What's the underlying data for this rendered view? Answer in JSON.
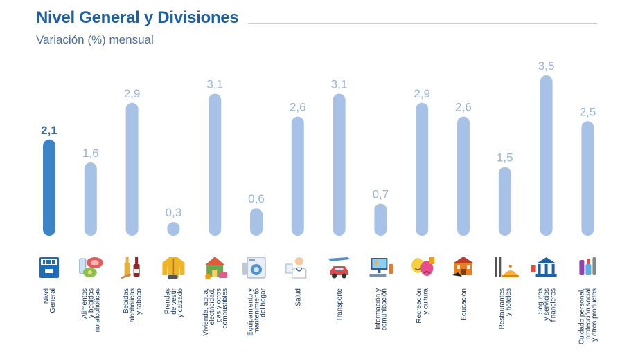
{
  "title": "Nivel General y Divisiones",
  "subtitle": "Variación (%) mensual",
  "colors": {
    "highlight": "#3c84c6",
    "bar": "#a8c1e6",
    "label_highlight": "#2e6cad",
    "label": "#9ab3d6"
  },
  "chart_data": {
    "type": "bar",
    "title": "Nivel General y Divisiones",
    "subtitle": "Variación (%) mensual",
    "xlabel": "",
    "ylabel": "",
    "ylim": [
      0,
      3.5
    ],
    "grid": false,
    "legend": "none",
    "categories": [
      [
        "Nivel",
        "General"
      ],
      [
        "Alimentos",
        "y bebidas",
        "no alcohólicas"
      ],
      [
        "Bebidas",
        "alcohólicas",
        "y tabaco"
      ],
      [
        "Prendas",
        "de vestir",
        "y calzado"
      ],
      [
        "Vivienda, agua,",
        "electricidad,",
        "gas y otros",
        "combustibles"
      ],
      [
        "Equipamiento y",
        "mantenimiento",
        "del hogar"
      ],
      [
        "Salud"
      ],
      [
        "Transporte"
      ],
      [
        "Información y",
        "comunicación"
      ],
      [
        "Recreación",
        "y cultura"
      ],
      [
        "Educación"
      ],
      [
        "Restaurantes",
        "y hoteles"
      ],
      [
        "Seguros",
        "y servicios",
        "financieros"
      ],
      [
        "Cuidado personal,",
        "protección social",
        "y otros productos"
      ]
    ],
    "values": [
      2.1,
      1.6,
      2.9,
      0.3,
      3.1,
      0.6,
      2.6,
      3.1,
      0.7,
      2.9,
      2.6,
      1.5,
      3.5,
      2.5
    ],
    "value_labels": [
      "2,1",
      "1,6",
      "2,9",
      "0,3",
      "3,1",
      "0,6",
      "2,6",
      "3,1",
      "0,7",
      "2,9",
      "2,6",
      "1,5",
      "3,5",
      "2,5"
    ],
    "highlight_index": 0,
    "icons": [
      "ipc-ba-logo-icon",
      "food-icon",
      "bottles-icon",
      "jacket-icon",
      "house-icon",
      "washing-machine-icon",
      "doctor-icon",
      "transport-icon",
      "computer-icon",
      "theater-masks-icon",
      "school-building-icon",
      "cutlery-icon",
      "bank-icon",
      "personal-care-icon"
    ]
  }
}
